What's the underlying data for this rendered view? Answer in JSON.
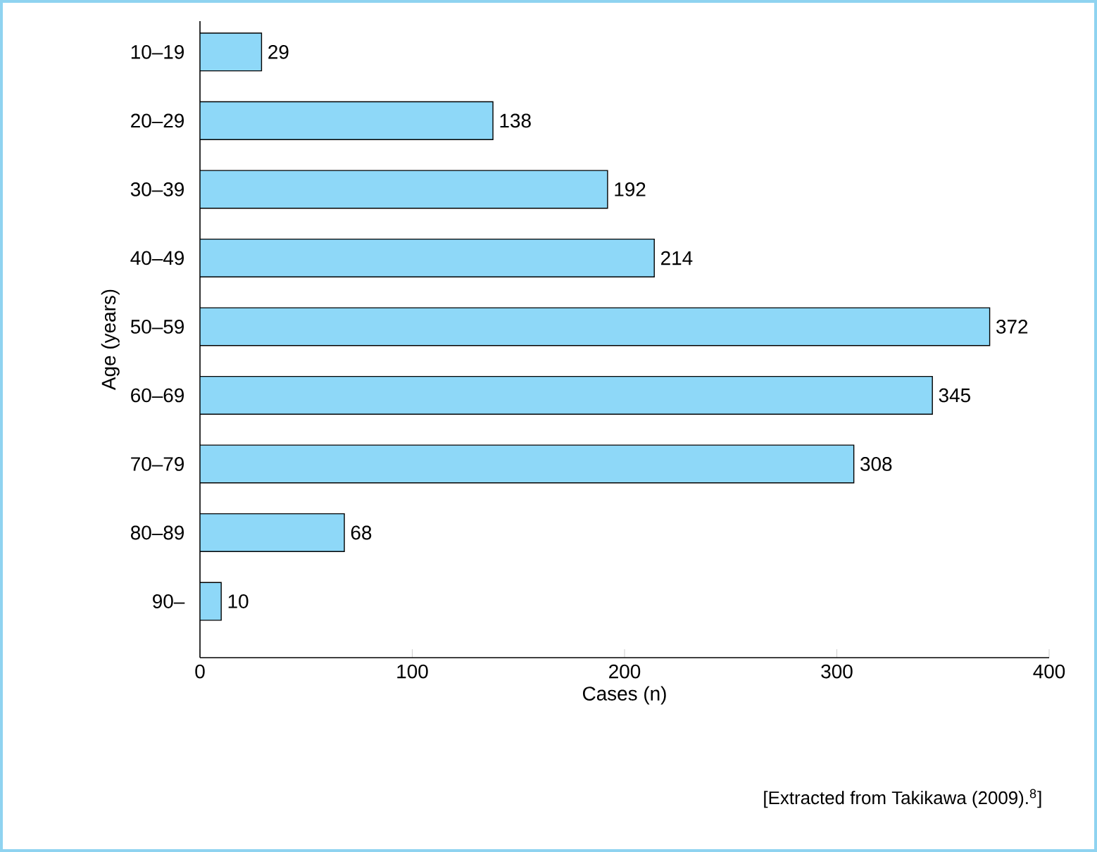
{
  "chart_data": {
    "type": "bar",
    "orientation": "horizontal",
    "categories": [
      "10–19",
      "20–29",
      "30–39",
      "40–49",
      "50–59",
      "60–69",
      "70–79",
      "80–89",
      "90–"
    ],
    "values": [
      29,
      138,
      192,
      214,
      372,
      345,
      308,
      68,
      10
    ],
    "color": "#8ed8f8",
    "xlabel": "Cases (n)",
    "ylabel": "Age (years)",
    "xlim": [
      0,
      400
    ],
    "xticks": [
      0,
      100,
      200,
      300,
      400
    ],
    "data_labels": true,
    "annotations": [
      "[Extracted from Takikawa (2009).$^{8}$]"
    ]
  }
}
